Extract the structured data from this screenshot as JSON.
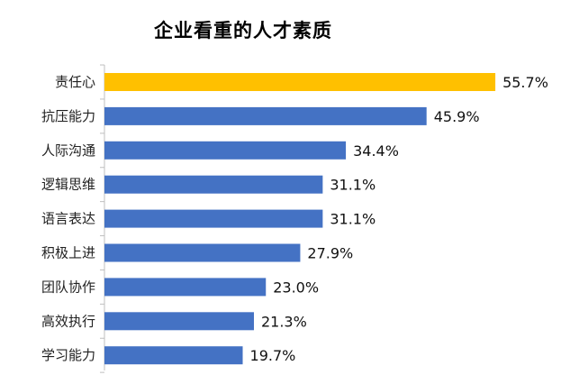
{
  "chart_data": {
    "type": "bar",
    "orientation": "horizontal",
    "title": "企业看重的人才素质",
    "categories": [
      "责任心",
      "抗压能力",
      "人际沟通",
      "逻辑思维",
      "语言表达",
      "积极上进",
      "团队协作",
      "高效执行",
      "学习能力"
    ],
    "values": [
      55.7,
      45.9,
      34.4,
      31.1,
      31.1,
      27.9,
      23.0,
      21.3,
      19.7
    ],
    "value_labels": [
      "55.7%",
      "45.9%",
      "34.4%",
      "31.1%",
      "31.1%",
      "27.9%",
      "23.0%",
      "21.3%",
      "19.7%"
    ],
    "xlim": [
      0,
      58
    ],
    "grid": false,
    "colors": {
      "highlight": "#FFC000",
      "bar": "#4472C4",
      "axis": "#BFBFBF"
    }
  }
}
